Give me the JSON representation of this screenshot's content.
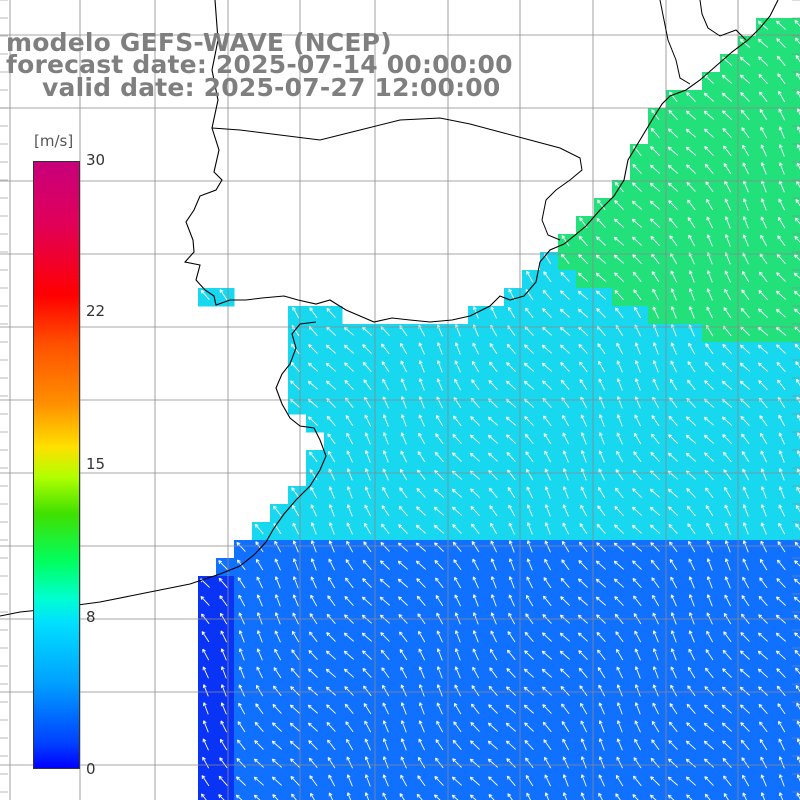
{
  "title": {
    "line1": "modelo GEFS-WAVE (NCEP)",
    "line2": "forecast date: 2025-07-14 00:00:00",
    "line3": "valid date: 2025-07-27 12:00:00"
  },
  "colorbar": {
    "unit": "[m/s]",
    "ticks": [
      "30",
      "22",
      "15",
      "8",
      "0"
    ],
    "tick_values": [
      30,
      22,
      15,
      8,
      0
    ],
    "min": 0,
    "max": 30
  },
  "map": {
    "land_color": "#ffffff",
    "grid_color": "#8a8a8a",
    "coast_color": "#000000",
    "arrow_color": "#ffffff",
    "field_colors": {
      "north_east_green": "#22e07a",
      "central_cyan": "#18d8f0",
      "south_blue": "#1070ff",
      "south_west_deep_blue": "#0a34f5"
    }
  }
}
